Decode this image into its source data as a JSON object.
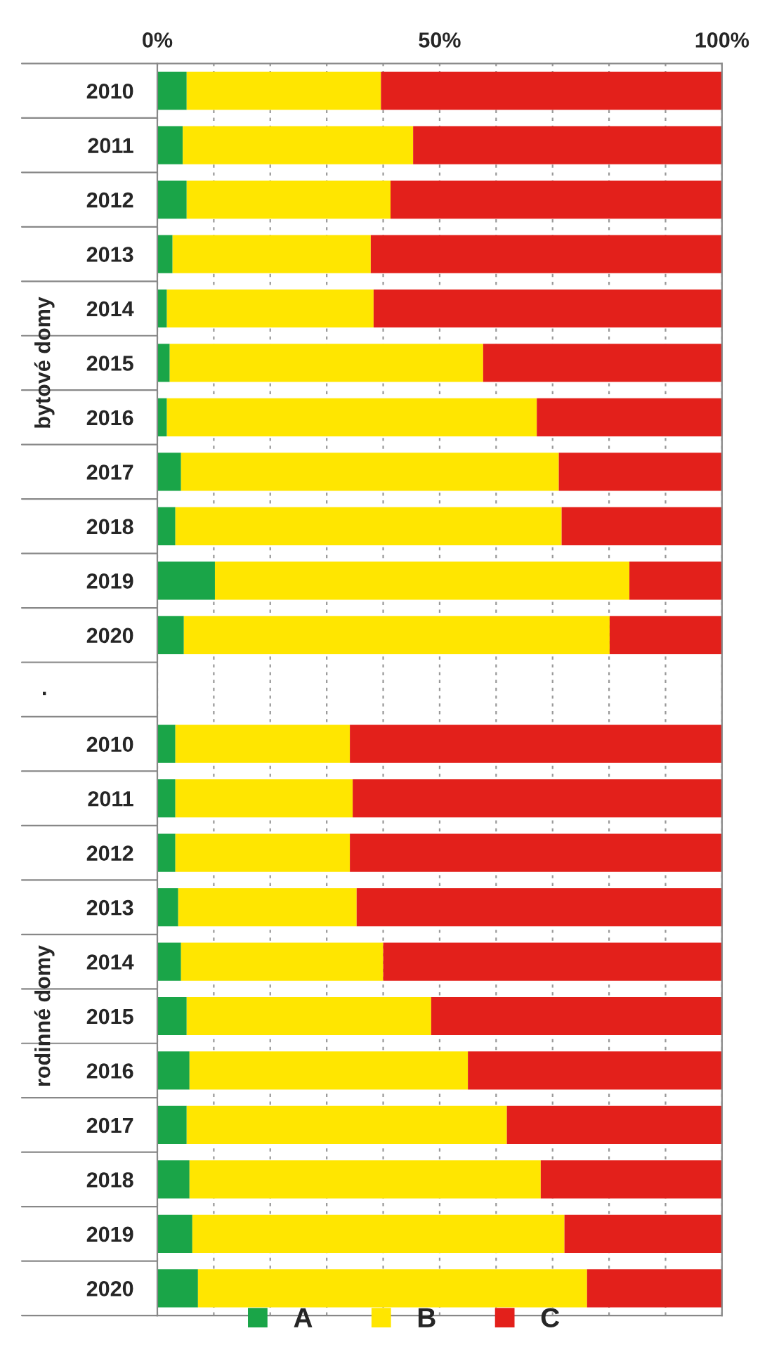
{
  "chart_data": {
    "type": "bar",
    "orientation": "horizontal",
    "stacked": true,
    "categories": [
      "2010",
      "2011",
      "2012",
      "2013",
      "2014",
      "2015",
      "2016",
      "2017",
      "2018",
      "2019",
      "2020",
      null,
      "2010",
      "2011",
      "2012",
      "2013",
      "2014",
      "2015",
      "2016",
      "2017",
      "2018",
      "2019",
      "2020"
    ],
    "series": [
      {
        "name": "A",
        "color": "#1aa548",
        "values": [
          5.2,
          4.5,
          5.2,
          2.7,
          1.7,
          2.2,
          1.7,
          4.2,
          3.2,
          10.2,
          4.7,
          null,
          3.2,
          3.2,
          3.2,
          3.7,
          4.2,
          5.2,
          5.7,
          5.2,
          5.7,
          6.2,
          7.2
        ]
      },
      {
        "name": "B",
        "color": "#ffe600",
        "values": [
          34.4,
          40.8,
          36.1,
          35.1,
          36.6,
          55.5,
          65.5,
          66.9,
          68.4,
          73.4,
          75.4,
          null,
          30.9,
          31.4,
          30.9,
          31.6,
          35.8,
          43.3,
          49.3,
          56.7,
          62.2,
          65.9,
          68.9
        ]
      },
      {
        "name": "C",
        "color": "#e3201b",
        "values": [
          60.4,
          54.7,
          58.7,
          62.2,
          61.7,
          42.3,
          32.8,
          28.9,
          28.4,
          16.4,
          19.9,
          null,
          65.9,
          65.4,
          65.9,
          64.7,
          60.0,
          51.5,
          45.0,
          38.1,
          32.1,
          27.9,
          23.9
        ]
      }
    ],
    "xlim": [
      0,
      100
    ],
    "xticks": [
      {
        "value": 0,
        "label": "0%"
      },
      {
        "value": 10,
        "label": null
      },
      {
        "value": 20,
        "label": null
      },
      {
        "value": 30,
        "label": null
      },
      {
        "value": 40,
        "label": null
      },
      {
        "value": 50,
        "label": "50%"
      },
      {
        "value": 60,
        "label": null
      },
      {
        "value": 70,
        "label": null
      },
      {
        "value": 80,
        "label": null
      },
      {
        "value": 90,
        "label": null
      },
      {
        "value": 100,
        "label": "100%"
      }
    ],
    "annotations": [
      "bytové domy",
      ".",
      "rodinné domy"
    ],
    "grid": "x",
    "legend": "bottom"
  }
}
